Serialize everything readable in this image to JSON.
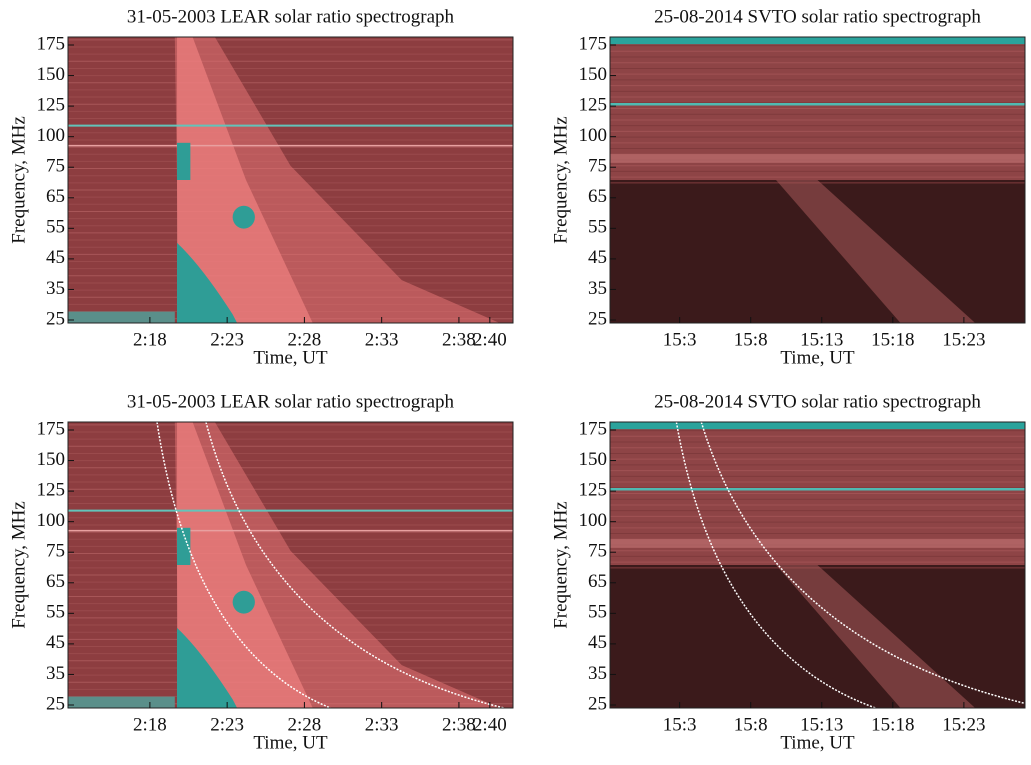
{
  "chart_data": [
    {
      "type": "heatmap",
      "title": "31-05-2003 LEAR solar ratio spectrograph",
      "xlabel": "Time, UT",
      "ylabel": "Frequency, MHz",
      "xlim": [
        132.7,
        161.5
      ],
      "xticks": [
        {
          "value": 138,
          "label": "2:18"
        },
        {
          "value": 143,
          "label": "2:23"
        },
        {
          "value": 148,
          "label": "2:28"
        },
        {
          "value": 153,
          "label": "2:33"
        },
        {
          "value": 158,
          "label": "2:38"
        },
        {
          "value": 160,
          "label": "2:40"
        }
      ],
      "ylim": [
        25,
        175
      ],
      "yticks": [
        25,
        35,
        45,
        55,
        65,
        75,
        100,
        125,
        150,
        175
      ]
    },
    {
      "type": "heatmap",
      "title": "25-08-2014 SVTO solar ratio spectrograph",
      "xlabel": "Time, UT",
      "ylabel": "Frequency, MHz",
      "xlim": [
        898.1,
        927.3
      ],
      "xticks": [
        {
          "value": 903,
          "label": "15:3"
        },
        {
          "value": 908,
          "label": "15:8"
        },
        {
          "value": 913,
          "label": "15:13"
        },
        {
          "value": 918,
          "label": "15:18"
        },
        {
          "value": 923,
          "label": "15:23"
        }
      ],
      "ylim": [
        25,
        175
      ],
      "yticks": [
        25,
        35,
        45,
        55,
        65,
        75,
        100,
        125,
        150,
        175
      ]
    },
    {
      "type": "heatmap",
      "title": "31-05-2003 LEAR solar ratio spectrograph",
      "xlabel": "Time, UT",
      "ylabel": "Frequency, MHz",
      "xlim": [
        132.7,
        161.5
      ],
      "xticks": [
        {
          "value": 138,
          "label": "2:18"
        },
        {
          "value": 143,
          "label": "2:23"
        },
        {
          "value": 148,
          "label": "2:28"
        },
        {
          "value": 153,
          "label": "2:33"
        },
        {
          "value": 158,
          "label": "2:38"
        },
        {
          "value": 160,
          "label": "2:40"
        }
      ],
      "ylim": [
        25,
        175
      ],
      "yticks": [
        25,
        35,
        45,
        55,
        65,
        75,
        100,
        125,
        150,
        175
      ]
    },
    {
      "type": "heatmap",
      "title": "25-08-2014 SVTO solar ratio spectrograph",
      "xlabel": "Time, UT",
      "ylabel": "Frequency, MHz",
      "xlim": [
        898.1,
        927.3
      ],
      "xticks": [
        {
          "value": 903,
          "label": "15:3"
        },
        {
          "value": 908,
          "label": "15:8"
        },
        {
          "value": 913,
          "label": "15:13"
        },
        {
          "value": 918,
          "label": "15:18"
        },
        {
          "value": 923,
          "label": "15:23"
        }
      ],
      "ylim": [
        25,
        175
      ],
      "yticks": [
        25,
        35,
        45,
        55,
        65,
        75,
        100,
        125,
        150,
        175
      ]
    }
  ]
}
